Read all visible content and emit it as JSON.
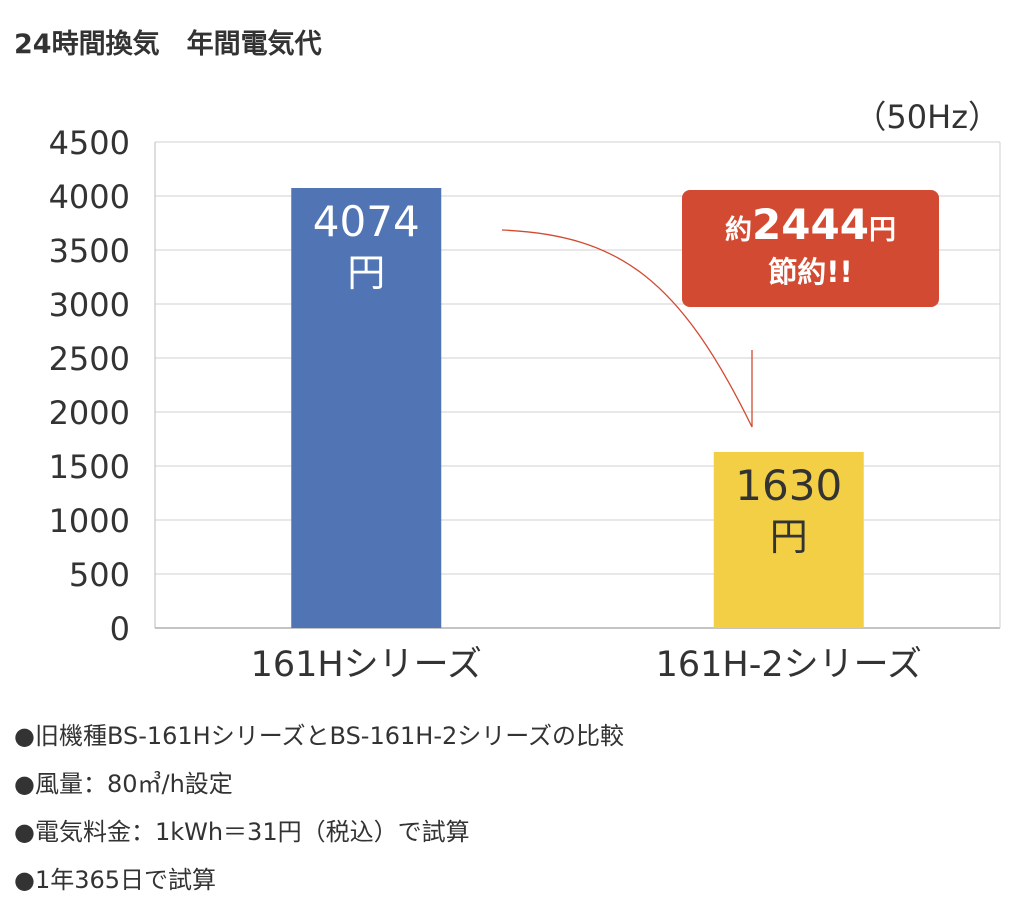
{
  "title": "24時間換気　年間電気代",
  "unit_label": "（50Hz）",
  "callout": {
    "prefix": "約",
    "amount": "2444",
    "suffix": "円",
    "line2": "節約!!"
  },
  "chart_data": {
    "type": "bar",
    "categories": [
      "161Hシリーズ",
      "161H-2シリーズ"
    ],
    "values": [
      4074,
      1630
    ],
    "value_labels": [
      "4074",
      "1630"
    ],
    "value_unit": "円",
    "ylim": [
      0,
      4500
    ],
    "yticks": [
      0,
      500,
      1000,
      1500,
      2000,
      2500,
      3000,
      3500,
      4000,
      4500
    ],
    "grid": true,
    "colors": [
      "#5074b4",
      "#f3cf45"
    ],
    "label_colors": [
      "#ffffff",
      "#333333"
    ]
  },
  "notes": [
    "●旧機種BS-161HシリーズとBS-161H-2シリーズの比較",
    "●風量：80㎥/h設定",
    "●電気料金：1kWh＝31円（税込）で試算",
    "●1年365日で試算"
  ]
}
